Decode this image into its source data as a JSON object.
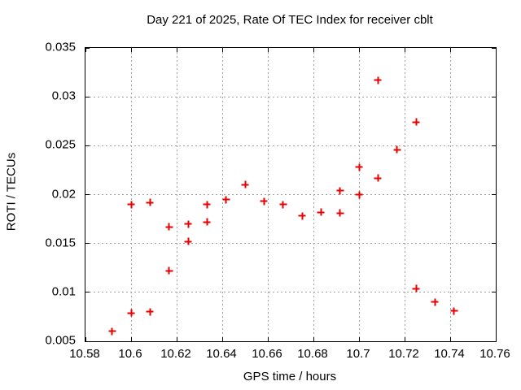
{
  "chart_data": {
    "type": "scatter",
    "title": "Day 221 of 2025, Rate Of TEC Index for receiver cblt",
    "xlabel": "GPS time / hours",
    "ylabel": "ROTI / TECUs",
    "xlim": [
      10.58,
      10.76
    ],
    "ylim": [
      0.005,
      0.035
    ],
    "grid": true,
    "legend": "none",
    "grid_color": "#a0a0a0",
    "axis_color": "#000000",
    "marker": "plus",
    "marker_color": "#e60000",
    "xticks": [
      {
        "value": 10.58,
        "label": "10.58"
      },
      {
        "value": 10.6,
        "label": "10.6"
      },
      {
        "value": 10.62,
        "label": "10.62"
      },
      {
        "value": 10.64,
        "label": "10.64"
      },
      {
        "value": 10.66,
        "label": "10.66"
      },
      {
        "value": 10.68,
        "label": "10.68"
      },
      {
        "value": 10.7,
        "label": "10.7"
      },
      {
        "value": 10.72,
        "label": "10.72"
      },
      {
        "value": 10.74,
        "label": "10.74"
      },
      {
        "value": 10.76,
        "label": "10.76"
      }
    ],
    "yticks": [
      {
        "value": 0.005,
        "label": "0.005"
      },
      {
        "value": 0.01,
        "label": "0.01"
      },
      {
        "value": 0.015,
        "label": "0.015"
      },
      {
        "value": 0.02,
        "label": "0.02"
      },
      {
        "value": 0.025,
        "label": "0.025"
      },
      {
        "value": 0.03,
        "label": "0.03"
      },
      {
        "value": 0.035,
        "label": "0.035"
      }
    ],
    "series": [
      {
        "name": "ROTI",
        "points": [
          [
            10.5917,
            0.006
          ],
          [
            10.6,
            0.019
          ],
          [
            10.6,
            0.0079
          ],
          [
            10.6083,
            0.0192
          ],
          [
            10.6083,
            0.008
          ],
          [
            10.6167,
            0.0167
          ],
          [
            10.6167,
            0.0122
          ],
          [
            10.625,
            0.017
          ],
          [
            10.625,
            0.0152
          ],
          [
            10.6333,
            0.019
          ],
          [
            10.6333,
            0.0172
          ],
          [
            10.6417,
            0.0195
          ],
          [
            10.65,
            0.021
          ],
          [
            10.6583,
            0.0193
          ],
          [
            10.6667,
            0.019
          ],
          [
            10.675,
            0.0178
          ],
          [
            10.6833,
            0.0182
          ],
          [
            10.6917,
            0.0204
          ],
          [
            10.6917,
            0.0181
          ],
          [
            10.7,
            0.0228
          ],
          [
            10.7,
            0.02
          ],
          [
            10.7083,
            0.0317
          ],
          [
            10.7083,
            0.0217
          ],
          [
            10.7167,
            0.0246
          ],
          [
            10.725,
            0.0274
          ],
          [
            10.725,
            0.0104
          ],
          [
            10.7333,
            0.009
          ],
          [
            10.7417,
            0.0081
          ]
        ]
      }
    ]
  }
}
